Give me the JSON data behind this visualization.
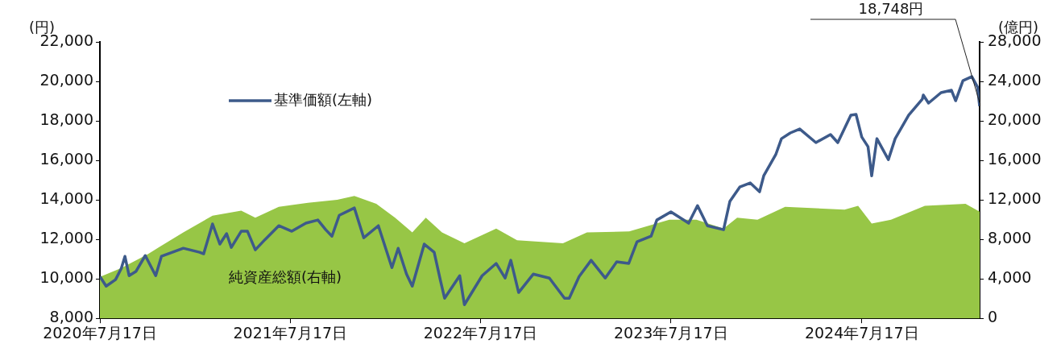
{
  "chart_data": {
    "type": "line",
    "ylabel": "(円)",
    "y2label": "(億円)",
    "xlim": [
      "2020-07-17",
      "2025-02-28"
    ],
    "xticks": [
      {
        "value": "2020-07-17",
        "label": "2020年7月17日"
      },
      {
        "value": "2021-07-17",
        "label": "2021年7月17日"
      },
      {
        "value": "2022-07-17",
        "label": "2022年7月17日"
      },
      {
        "value": "2023-07-17",
        "label": "2023年7月17日"
      },
      {
        "value": "2024-07-17",
        "label": "2024年7月17日"
      }
    ],
    "ylim": [
      8000,
      22000
    ],
    "yticks": [
      {
        "value": 8000,
        "label": "8,000"
      },
      {
        "value": 10000,
        "label": "10,000"
      },
      {
        "value": 12000,
        "label": "12,000"
      },
      {
        "value": 14000,
        "label": "14,000"
      },
      {
        "value": 16000,
        "label": "16,000"
      },
      {
        "value": 18000,
        "label": "18,000"
      },
      {
        "value": 20000,
        "label": "20,000"
      },
      {
        "value": 22000,
        "label": "22,000"
      }
    ],
    "y2lim": [
      0,
      28000
    ],
    "y2ticks": [
      0,
      {
        "value": 4000,
        "label": "4,000"
      },
      {
        "value": 8000,
        "label": "8,000"
      },
      {
        "value": 12000,
        "label": "12,000"
      },
      {
        "value": 16000,
        "label": "16,000"
      },
      {
        "value": 20000,
        "label": "20,000"
      },
      {
        "value": 24000,
        "label": "24,000"
      },
      {
        "value": 28000,
        "label": "28,000"
      }
    ],
    "grid": false,
    "legend": "top left",
    "marker": "none",
    "line_style": "solid",
    "annotations": [
      {
        "text": "18,748円",
        "x": "2025-02-28",
        "y": 18748
      }
    ],
    "series": [
      {
        "name": "純資産総額(右軸)",
        "type": "area",
        "axis": "y2",
        "color": "#97c646",
        "x": [
          "2020-07-17",
          "2020-08-27",
          "2020-10-17",
          "2020-11-07",
          "2020-12-24",
          "2021-02-18",
          "2021-04-14",
          "2021-05-11",
          "2021-06-25",
          "2021-08-20",
          "2021-10-15",
          "2021-11-17",
          "2021-12-29",
          "2022-02-03",
          "2022-03-08",
          "2022-04-03",
          "2022-05-04",
          "2022-06-16",
          "2022-08-16",
          "2022-09-25",
          "2022-12-22",
          "2023-02-06",
          "2023-04-28",
          "2023-07-14",
          "2023-09-04",
          "2023-10-26",
          "2023-11-21",
          "2023-12-30",
          "2024-02-21",
          "2024-06-14",
          "2024-07-10",
          "2024-08-05",
          "2024-09-11",
          "2024-11-15",
          "2025-02-01",
          "2025-02-28"
        ],
        "values": [
          4200,
          5100,
          6500,
          7200,
          8700,
          10400,
          10900,
          10200,
          11300,
          11700,
          12000,
          12400,
          11600,
          10200,
          8700,
          10200,
          8700,
          7600,
          9100,
          7900,
          7600,
          8700,
          8800,
          10000,
          10000,
          9100,
          10200,
          10000,
          11300,
          11000,
          11400,
          9600,
          10000,
          11400,
          11600,
          10800
        ]
      },
      {
        "name": "基準価額(左軸)",
        "type": "line",
        "axis": "y",
        "color": "#3d5a8a",
        "x": [
          "2020-07-17",
          "2020-07-29",
          "2020-08-16",
          "2020-08-27",
          "2020-09-03",
          "2020-09-11",
          "2020-09-24",
          "2020-10-12",
          "2020-11-01",
          "2020-11-12",
          "2020-12-24",
          "2021-01-24",
          "2021-02-01",
          "2021-02-18",
          "2021-03-04",
          "2021-03-17",
          "2021-03-26",
          "2021-04-14",
          "2021-04-26",
          "2021-05-11",
          "2021-05-30",
          "2021-06-25",
          "2021-07-20",
          "2021-08-16",
          "2021-09-08",
          "2021-09-23",
          "2021-10-05",
          "2021-10-19",
          "2021-11-17",
          "2021-12-05",
          "2022-01-02",
          "2022-01-28",
          "2022-02-09",
          "2022-02-25",
          "2022-03-08",
          "2022-03-31",
          "2022-04-19",
          "2022-05-01",
          "2022-05-09",
          "2022-06-07",
          "2022-06-16",
          "2022-07-20",
          "2022-08-16",
          "2022-09-02",
          "2022-09-13",
          "2022-09-28",
          "2022-10-26",
          "2022-11-26",
          "2022-12-25",
          "2023-01-03",
          "2023-01-22",
          "2023-02-14",
          "2023-03-13",
          "2023-04-04",
          "2023-04-27",
          "2023-05-13",
          "2023-06-09",
          "2023-06-20",
          "2023-07-17",
          "2023-08-20",
          "2023-09-06",
          "2023-09-25",
          "2023-10-26",
          "2023-11-07",
          "2023-11-26",
          "2023-12-16",
          "2024-01-03",
          "2024-01-11",
          "2024-02-03",
          "2024-02-14",
          "2024-03-02",
          "2024-03-20",
          "2024-04-20",
          "2024-05-18",
          "2024-06-01",
          "2024-06-26",
          "2024-07-06",
          "2024-07-17",
          "2024-07-29",
          "2024-08-05",
          "2024-08-15",
          "2024-09-06",
          "2024-09-19",
          "2024-10-15",
          "2024-11-10",
          "2024-11-12",
          "2024-11-22",
          "2024-12-16",
          "2025-01-05",
          "2025-01-13",
          "2025-01-27",
          "2025-02-13",
          "2025-02-24",
          "2025-02-28"
        ],
        "values": [
          10120,
          9630,
          9960,
          10530,
          11140,
          10160,
          10370,
          11180,
          10160,
          11140,
          11550,
          11350,
          11270,
          12780,
          11760,
          12290,
          11590,
          12410,
          12410,
          11470,
          12000,
          12690,
          12410,
          12820,
          12980,
          12490,
          12160,
          13220,
          13590,
          12080,
          12690,
          10570,
          11550,
          10240,
          9630,
          11760,
          11350,
          9920,
          9020,
          10160,
          8690,
          10160,
          10780,
          10040,
          10940,
          9310,
          10240,
          10040,
          9020,
          9020,
          10120,
          10940,
          10040,
          10860,
          10780,
          11880,
          12160,
          12980,
          13390,
          12820,
          13710,
          12690,
          12490,
          13920,
          14650,
          14860,
          14410,
          15220,
          16290,
          17100,
          17390,
          17590,
          16900,
          17310,
          16900,
          18290,
          18330,
          17180,
          16690,
          15220,
          17100,
          16040,
          17100,
          18290,
          19100,
          19310,
          18900,
          19430,
          19550,
          19020,
          20040,
          20240,
          19710,
          18748
        ]
      }
    ]
  }
}
